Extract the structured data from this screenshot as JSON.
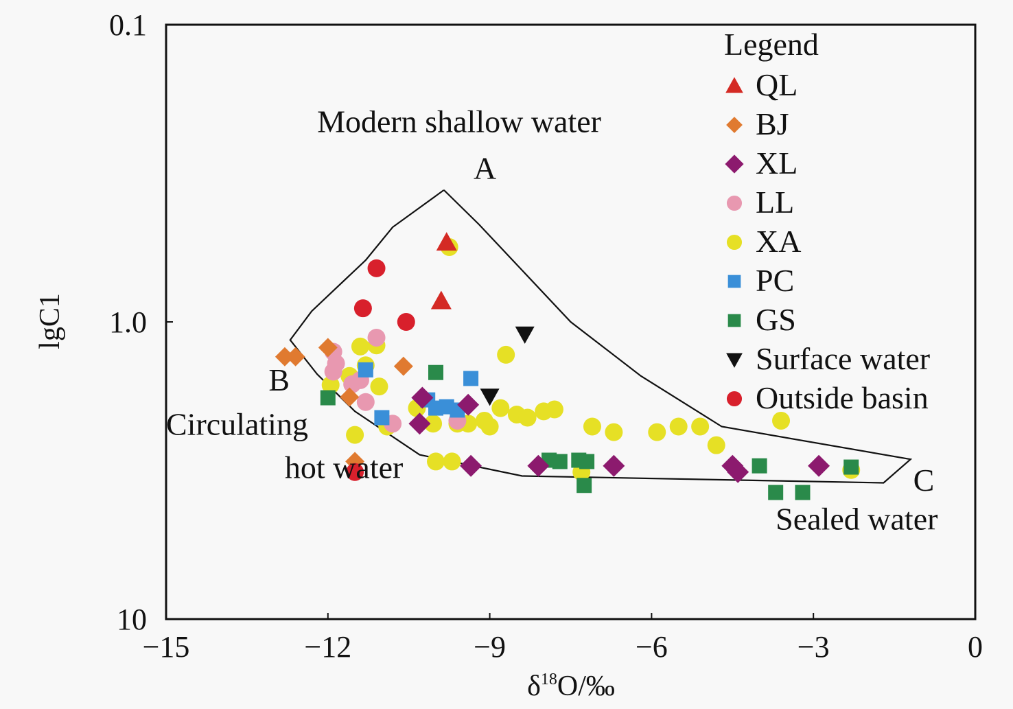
{
  "chart_data": {
    "type": "scatter",
    "title": "",
    "xlabel": "δ18O/‰",
    "xlabel_base": "δ",
    "xlabel_sup": "18",
    "xlabel_rest": "O/‰",
    "ylabel": "lgC1",
    "xlim": [
      -15,
      0
    ],
    "ylim": [
      0.1,
      10
    ],
    "y_scale": "log",
    "y_inverted": true,
    "x_ticks": [
      -15,
      -12,
      -9,
      -6,
      -3,
      0
    ],
    "x_tick_labels": [
      "−15",
      "−12",
      "−9",
      "−6",
      "−3",
      "0"
    ],
    "y_ticks": [
      0.1,
      1.0,
      10
    ],
    "y_tick_labels": [
      "0.1",
      "1.0",
      "10"
    ],
    "grid": false,
    "legend": {
      "title": "Legend",
      "placement": "top-right",
      "entries": [
        {
          "name": "QL",
          "marker": "triangle-up",
          "color": "#d42a24"
        },
        {
          "name": "BJ",
          "marker": "diamond-small",
          "color": "#e07a30"
        },
        {
          "name": "XL",
          "marker": "diamond",
          "color": "#8c1a6e"
        },
        {
          "name": "LL",
          "marker": "circle",
          "color": "#e898b0"
        },
        {
          "name": "XA",
          "marker": "circle",
          "color": "#e6e025"
        },
        {
          "name": "PC",
          "marker": "square",
          "color": "#3a8fd8"
        },
        {
          "name": "GS",
          "marker": "square",
          "color": "#2a8a4a"
        },
        {
          "name": "Surface water",
          "marker": "triangle-down",
          "color": "#111111"
        },
        {
          "name": "Outside basin",
          "marker": "circle",
          "color": "#d8202c"
        }
      ]
    },
    "envelope": {
      "name": "mixing-envelope",
      "points": [
        [
          -9.85,
          0.36
        ],
        [
          -9.2,
          0.47
        ],
        [
          -7.5,
          1.0
        ],
        [
          -6.2,
          1.52
        ],
        [
          -4.7,
          2.25
        ],
        [
          -1.2,
          2.9
        ],
        [
          -1.7,
          3.48
        ],
        [
          -8.4,
          3.3
        ],
        [
          -10.3,
          2.8
        ],
        [
          -11.5,
          2.0
        ],
        [
          -12.2,
          1.5
        ],
        [
          -12.7,
          1.15
        ],
        [
          -12.3,
          0.92
        ],
        [
          -11.3,
          0.62
        ],
        [
          -10.8,
          0.48
        ],
        [
          -9.85,
          0.36
        ]
      ]
    },
    "annotations": [
      {
        "text": "Modern shallow water",
        "x": -12.2,
        "y": 0.23
      },
      {
        "text": "A",
        "x": -9.3,
        "y": 0.33
      },
      {
        "text": "B",
        "x": -13.1,
        "y": 1.7
      },
      {
        "text": "Circulating",
        "x": -15.0,
        "y": 2.4
      },
      {
        "text": "hot water",
        "x": -12.8,
        "y": 3.35
      },
      {
        "text": "C",
        "x": -1.15,
        "y": 3.7
      },
      {
        "text": "Sealed water",
        "x": -3.7,
        "y": 5.0
      }
    ],
    "series": [
      {
        "name": "QL",
        "points": [
          [
            -9.8,
            0.54
          ],
          [
            -9.9,
            0.85
          ]
        ]
      },
      {
        "name": "BJ",
        "points": [
          [
            -12.8,
            1.31
          ],
          [
            -12.6,
            1.31
          ],
          [
            -12.0,
            1.22
          ],
          [
            -10.6,
            1.41
          ],
          [
            -11.6,
            1.79
          ],
          [
            -11.5,
            2.95
          ]
        ]
      },
      {
        "name": "XL",
        "points": [
          [
            -10.25,
            1.8
          ],
          [
            -10.3,
            2.2
          ],
          [
            -9.4,
            1.9
          ],
          [
            -9.35,
            3.05
          ],
          [
            -8.1,
            3.05
          ],
          [
            -6.7,
            3.05
          ],
          [
            -4.5,
            3.05
          ],
          [
            -4.4,
            3.2
          ],
          [
            -2.9,
            3.05
          ]
        ]
      },
      {
        "name": "LL",
        "points": [
          [
            -11.9,
            1.26
          ],
          [
            -11.85,
            1.38
          ],
          [
            -11.9,
            1.47
          ],
          [
            -11.4,
            1.57
          ],
          [
            -11.55,
            1.62
          ],
          [
            -11.3,
            1.86
          ],
          [
            -11.1,
            1.13
          ],
          [
            -10.8,
            2.2
          ],
          [
            -9.6,
            2.15
          ]
        ]
      },
      {
        "name": "XA",
        "points": [
          [
            -9.75,
            0.56
          ],
          [
            -11.95,
            1.63
          ],
          [
            -11.6,
            1.52
          ],
          [
            -11.3,
            1.4
          ],
          [
            -11.4,
            1.21
          ],
          [
            -11.1,
            1.2
          ],
          [
            -11.05,
            1.65
          ],
          [
            -11.5,
            2.4
          ],
          [
            -10.9,
            2.25
          ],
          [
            -10.35,
            1.95
          ],
          [
            -10.05,
            2.2
          ],
          [
            -9.6,
            2.2
          ],
          [
            -9.4,
            2.2
          ],
          [
            -9.1,
            2.15
          ],
          [
            -9.0,
            2.25
          ],
          [
            -8.8,
            1.95
          ],
          [
            -8.5,
            2.05
          ],
          [
            -8.3,
            2.1
          ],
          [
            -8.0,
            2.0
          ],
          [
            -7.8,
            1.97
          ],
          [
            -7.1,
            2.25
          ],
          [
            -6.7,
            2.35
          ],
          [
            -5.9,
            2.35
          ],
          [
            -5.5,
            2.25
          ],
          [
            -5.1,
            2.25
          ],
          [
            -4.8,
            2.6
          ],
          [
            -3.6,
            2.15
          ],
          [
            -10.0,
            2.95
          ],
          [
            -9.7,
            2.95
          ],
          [
            -7.3,
            3.2
          ],
          [
            -2.3,
            3.15
          ],
          [
            -8.7,
            1.29
          ]
        ]
      },
      {
        "name": "PC",
        "points": [
          [
            -11.3,
            1.45
          ],
          [
            -11.0,
            2.1
          ],
          [
            -10.15,
            1.83
          ],
          [
            -10.0,
            1.95
          ],
          [
            -9.8,
            1.93
          ],
          [
            -9.6,
            1.98
          ],
          [
            -9.35,
            1.55
          ]
        ]
      },
      {
        "name": "GS",
        "points": [
          [
            -12.0,
            1.8
          ],
          [
            -10.0,
            1.48
          ],
          [
            -7.9,
            2.92
          ],
          [
            -7.7,
            2.95
          ],
          [
            -7.35,
            2.92
          ],
          [
            -7.2,
            2.95
          ],
          [
            -7.25,
            3.55
          ],
          [
            -4.0,
            3.05
          ],
          [
            -3.7,
            3.75
          ],
          [
            -3.2,
            3.75
          ],
          [
            -2.3,
            3.08
          ]
        ]
      },
      {
        "name": "Surface water",
        "points": [
          [
            -8.35,
            1.1
          ],
          [
            -9.0,
            1.78
          ]
        ]
      },
      {
        "name": "Outside basin",
        "points": [
          [
            -11.1,
            0.66
          ],
          [
            -11.35,
            0.9
          ],
          [
            -10.55,
            1.0
          ],
          [
            -11.5,
            3.2
          ]
        ]
      }
    ]
  }
}
